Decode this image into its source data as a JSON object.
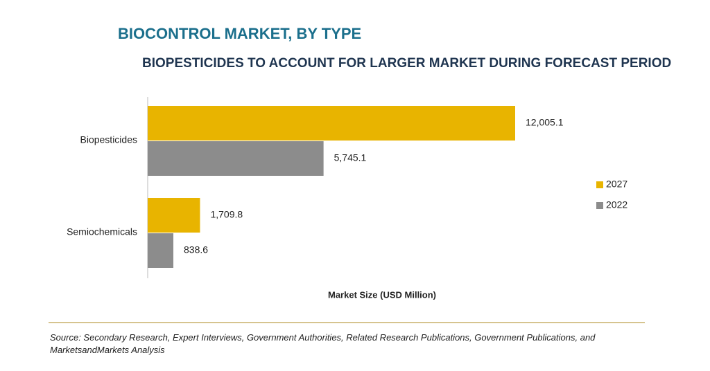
{
  "chart_data": {
    "type": "hbar",
    "title": "BIOCONTROL MARKET, BY TYPE",
    "subtitle": "BIOPESTICIDES TO ACCOUNT FOR LARGER MARKET DURING FORECAST PERIOD",
    "xlabel": "Market Size (USD Million)",
    "categories": [
      "Biopesticides",
      "Semiochemicals"
    ],
    "series": [
      {
        "name": "2027",
        "color": "#e8b400",
        "values": [
          12005.1,
          1709.8
        ],
        "value_labels": [
          "12,005.1",
          "1,709.8"
        ]
      },
      {
        "name": "2022",
        "color": "#8c8c8c",
        "values": [
          5745.1,
          838.6
        ],
        "value_labels": [
          "5,745.1",
          "838.6"
        ]
      }
    ],
    "legend": "right",
    "source": "Source: Secondary Research, Expert Interviews, Government Authorities, Related Research Publications, Government Publications, and MarketsandMarkets Analysis"
  }
}
